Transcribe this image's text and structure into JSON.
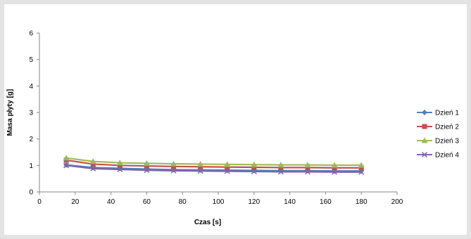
{
  "chart_data": {
    "type": "line",
    "title": "",
    "xlabel": "Czas [s]",
    "ylabel": "Masa płyty [g]",
    "xlim": [
      0,
      200
    ],
    "ylim": [
      0,
      6
    ],
    "x_ticks": [
      0,
      20,
      40,
      60,
      80,
      100,
      120,
      140,
      160,
      180,
      200
    ],
    "y_ticks": [
      0,
      1,
      2,
      3,
      4,
      5,
      6
    ],
    "grid": false,
    "legend_position": "right",
    "x": [
      15,
      30,
      45,
      60,
      75,
      90,
      105,
      120,
      135,
      150,
      165,
      180
    ],
    "series": [
      {
        "name": "Dzień 1",
        "color": "#4f81bd",
        "marker": "diamond",
        "values": [
          1.02,
          0.92,
          0.89,
          0.86,
          0.84,
          0.83,
          0.82,
          0.81,
          0.8,
          0.8,
          0.79,
          0.79
        ]
      },
      {
        "name": "Dzień 2",
        "color": "#c0504d",
        "marker": "square",
        "values": [
          1.2,
          1.05,
          1.0,
          0.98,
          0.96,
          0.95,
          0.94,
          0.93,
          0.92,
          0.92,
          0.91,
          0.91
        ]
      },
      {
        "name": "Dzień 3",
        "color": "#9bbb59",
        "marker": "triangle",
        "values": [
          1.28,
          1.15,
          1.1,
          1.08,
          1.06,
          1.05,
          1.04,
          1.03,
          1.02,
          1.02,
          1.01,
          1.01
        ]
      },
      {
        "name": "Dzień 4",
        "color": "#8064a2",
        "marker": "x",
        "values": [
          1.0,
          0.88,
          0.85,
          0.82,
          0.8,
          0.79,
          0.78,
          0.77,
          0.76,
          0.76,
          0.75,
          0.75
        ]
      }
    ]
  }
}
